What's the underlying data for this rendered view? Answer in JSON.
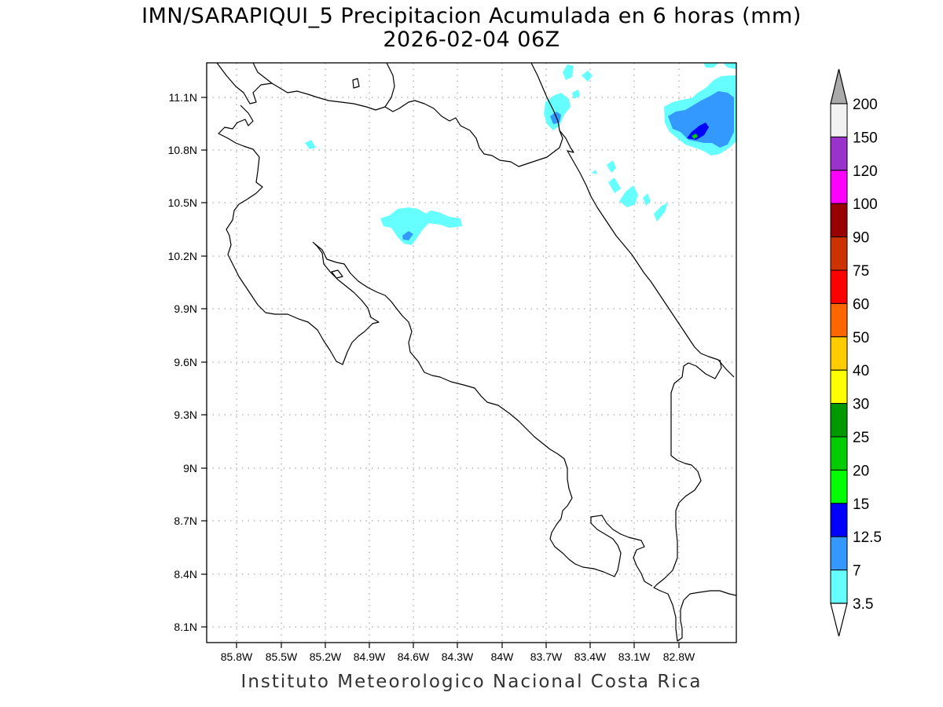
{
  "title": {
    "line1": "IMN/SARAPIQUI_5 Precipitacion Acumulada en 6 horas (mm)",
    "line2": "2026-02-04 06Z"
  },
  "footer": "Instituto Meteorologico Nacional Costa Rica",
  "map": {
    "lon_range": [
      -86.0,
      -83.0
    ],
    "lat_range": [
      8.0,
      11.3
    ],
    "grid": "dotted",
    "x_ticks": [
      "85.8W",
      "85.5W",
      "85.2W",
      "84.9W",
      "84.6W",
      "84.3W",
      "84W",
      "83.7W",
      "83.4W",
      "83.1W",
      "82.8W"
    ],
    "y_ticks": [
      "11.1N",
      "10.8N",
      "10.5N",
      "10.2N",
      "9.9N",
      "9.6N",
      "9.3N",
      "9N",
      "8.7N",
      "8.4N",
      "8.1N"
    ]
  },
  "colorbar": {
    "labels": [
      "200",
      "150",
      "120",
      "100",
      "90",
      "75",
      "60",
      "50",
      "40",
      "30",
      "25",
      "20",
      "15",
      "12.5",
      "7",
      "3.5"
    ],
    "colors": [
      "#f2f2f2",
      "#9933cc",
      "#ff00ff",
      "#990000",
      "#cc3300",
      "#ff0000",
      "#ff6600",
      "#ffcc00",
      "#ffff00",
      "#009900",
      "#00cc00",
      "#00ff00",
      "#0000ff",
      "#3399ff",
      "#66ffff"
    ],
    "top_arrow_color": "#aaaaaa",
    "bottom_arrow_color": "#ffffff"
  }
}
